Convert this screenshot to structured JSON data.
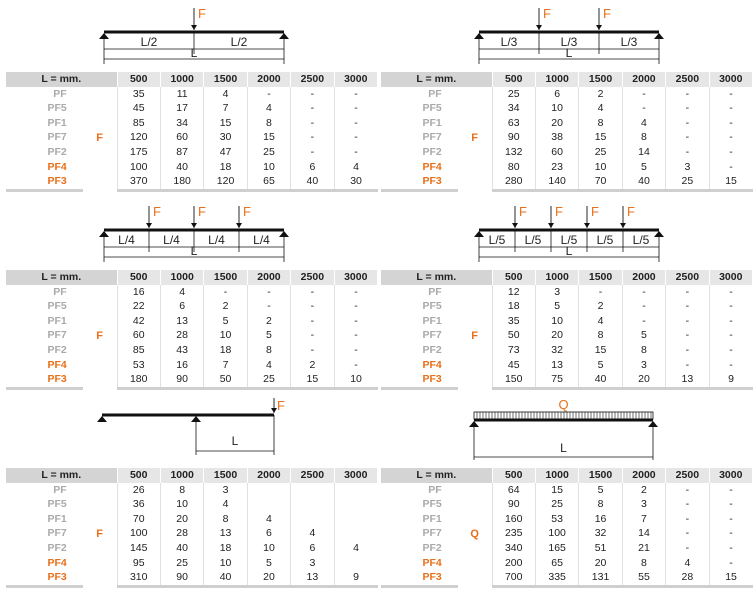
{
  "header": {
    "l_label": "L = mm.",
    "lengths": [
      "500",
      "1000",
      "1500",
      "2000",
      "2500",
      "3000"
    ]
  },
  "profiles": [
    "PF",
    "PF5",
    "PF1",
    "PF7",
    "PF2",
    "PF4",
    "PF3"
  ],
  "colors": {
    "accent": "#e8701a",
    "muted": "#aaaaaa",
    "header_bg": "#e6e6e6"
  },
  "tables": [
    {
      "id": "t1",
      "load": "F",
      "diagram": {
        "type": "point-loads",
        "force_label": "F",
        "segments": [
          "L/2",
          "L/2"
        ],
        "span_label": "L"
      },
      "rows": [
        [
          "35",
          "11",
          "4",
          "-",
          "-",
          "-"
        ],
        [
          "45",
          "17",
          "7",
          "4",
          "-",
          "-"
        ],
        [
          "85",
          "34",
          "15",
          "8",
          "-",
          "-"
        ],
        [
          "120",
          "60",
          "30",
          "15",
          "-",
          "-"
        ],
        [
          "175",
          "87",
          "47",
          "25",
          "-",
          "-"
        ],
        [
          "100",
          "40",
          "18",
          "10",
          "6",
          "4"
        ],
        [
          "370",
          "180",
          "120",
          "65",
          "40",
          "30"
        ]
      ]
    },
    {
      "id": "t2",
      "load": "F",
      "diagram": {
        "type": "point-loads",
        "force_label": "F",
        "segments": [
          "L/3",
          "L/3",
          "L/3"
        ],
        "span_label": "L"
      },
      "rows": [
        [
          "25",
          "6",
          "2",
          "-",
          "-",
          "-"
        ],
        [
          "34",
          "10",
          "4",
          "-",
          "-",
          "-"
        ],
        [
          "63",
          "20",
          "8",
          "4",
          "-",
          "-"
        ],
        [
          "90",
          "38",
          "15",
          "8",
          "-",
          "-"
        ],
        [
          "132",
          "60",
          "25",
          "14",
          "-",
          "-"
        ],
        [
          "80",
          "23",
          "10",
          "5",
          "3",
          "-"
        ],
        [
          "280",
          "140",
          "70",
          "40",
          "25",
          "15"
        ]
      ]
    },
    {
      "id": "t3",
      "load": "F",
      "diagram": {
        "type": "point-loads",
        "force_label": "F",
        "segments": [
          "L/4",
          "L/4",
          "L/4",
          "L/4"
        ],
        "span_label": "L"
      },
      "rows": [
        [
          "16",
          "4",
          "-",
          "-",
          "-",
          "-"
        ],
        [
          "22",
          "6",
          "2",
          "-",
          "-",
          "-"
        ],
        [
          "42",
          "13",
          "5",
          "2",
          "-",
          "-"
        ],
        [
          "60",
          "28",
          "10",
          "5",
          "-",
          "-"
        ],
        [
          "85",
          "43",
          "18",
          "8",
          "-",
          "-"
        ],
        [
          "53",
          "16",
          "7",
          "4",
          "2",
          "-"
        ],
        [
          "180",
          "90",
          "50",
          "25",
          "15",
          "10"
        ]
      ]
    },
    {
      "id": "t4",
      "load": "F",
      "diagram": {
        "type": "point-loads",
        "force_label": "F",
        "segments": [
          "L/5",
          "L/5",
          "L/5",
          "L/5",
          "L/5"
        ],
        "span_label": "L"
      },
      "rows": [
        [
          "12",
          "3",
          "-",
          "-",
          "-",
          "-"
        ],
        [
          "18",
          "5",
          "2",
          "-",
          "-",
          "-"
        ],
        [
          "35",
          "10",
          "4",
          "-",
          "-",
          "-"
        ],
        [
          "50",
          "20",
          "8",
          "5",
          "-",
          "-"
        ],
        [
          "73",
          "32",
          "15",
          "8",
          "-",
          "-"
        ],
        [
          "45",
          "13",
          "5",
          "3",
          "-",
          "-"
        ],
        [
          "150",
          "75",
          "40",
          "20",
          "13",
          "9"
        ]
      ]
    },
    {
      "id": "t5",
      "load": "F",
      "diagram": {
        "type": "cantilever",
        "force_label": "F",
        "segments": [],
        "span_label": "L"
      },
      "rows": [
        [
          "26",
          "8",
          "3",
          "",
          "",
          ""
        ],
        [
          "36",
          "10",
          "4",
          "",
          "",
          ""
        ],
        [
          "70",
          "20",
          "8",
          "4",
          "",
          ""
        ],
        [
          "100",
          "28",
          "13",
          "6",
          "4",
          ""
        ],
        [
          "145",
          "40",
          "18",
          "10",
          "6",
          "4"
        ],
        [
          "95",
          "25",
          "10",
          "5",
          "3",
          ""
        ],
        [
          "310",
          "90",
          "40",
          "20",
          "13",
          "9"
        ]
      ]
    },
    {
      "id": "t6",
      "load": "Q",
      "diagram": {
        "type": "distributed",
        "force_label": "Q",
        "segments": [],
        "span_label": "L"
      },
      "rows": [
        [
          "64",
          "15",
          "5",
          "2",
          "-",
          "-"
        ],
        [
          "90",
          "25",
          "8",
          "3",
          "-",
          "-"
        ],
        [
          "160",
          "53",
          "16",
          "7",
          "-",
          "-"
        ],
        [
          "235",
          "100",
          "32",
          "14",
          "-",
          "-"
        ],
        [
          "340",
          "165",
          "51",
          "21",
          "-",
          "-"
        ],
        [
          "200",
          "65",
          "20",
          "8",
          "4",
          "-"
        ],
        [
          "700",
          "335",
          "131",
          "55",
          "28",
          "15"
        ]
      ]
    }
  ]
}
